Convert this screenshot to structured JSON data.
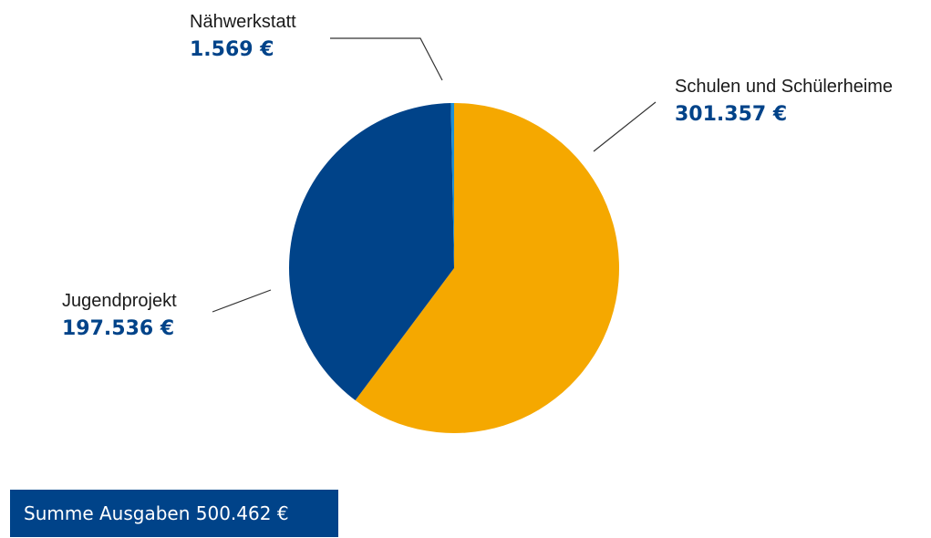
{
  "chart_data": {
    "type": "pie",
    "unit": "€",
    "slices": [
      {
        "name": "Schulen und Schülerheime",
        "value": 301357,
        "label": "301.357 €",
        "color": "#F5A800"
      },
      {
        "name": "Jugendprojekt",
        "value": 197536,
        "label": "197.536 €",
        "color": "#004389"
      },
      {
        "name": "Nähwerkstatt",
        "value": 1569,
        "label": "1.569 €",
        "color": "#1E90D6"
      }
    ]
  },
  "total": {
    "text": "Summe Ausgaben 500.462 €"
  },
  "colors": {
    "value_text": "#004389",
    "total_box_bg": "#004389",
    "leader_line": "#333333"
  }
}
